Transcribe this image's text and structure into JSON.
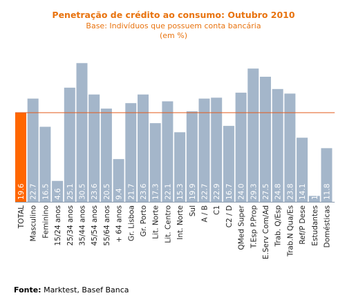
{
  "source_label": "Fonte:",
  "source_text": "Marktest, Basef Banca",
  "colors": {
    "total_bar": "#ff6600",
    "bar": "#a4b6ca",
    "reference_line": "#e35a1a",
    "title": "#e8730f"
  },
  "chart_data": {
    "type": "bar",
    "title": "Penetração de crédito ao consumo: Outubro 2010",
    "subtitle": "Base: Indivíduos que possuem conta bancária",
    "unit": "(em %)",
    "categories": [
      "TOTAL",
      "Masculino",
      "Feminino",
      "15/24 anos",
      "25/34 anos",
      "35/44 anos",
      "45/54 anos",
      "55/64 anos",
      "+ 64 anos",
      "Gr. Lisboa",
      "Gr. Porto",
      "Lit. Norte",
      "Lit. Centro",
      "Int. Norte",
      "Sul",
      "A / B",
      "C1",
      "C2 / D",
      "QMed Super",
      "T.Esp P.Prop",
      "E.Serv Com/Ad",
      "Trab. Q/Esp",
      "Trab.N Qua/Es",
      "Ref/P Dese",
      "Estudantes",
      "Domésticas"
    ],
    "values": [
      19.6,
      22.7,
      16.5,
      4.6,
      25.1,
      30.5,
      23.6,
      20.5,
      9.4,
      21.7,
      23.6,
      17.3,
      22.1,
      15.3,
      19.9,
      22.7,
      22.9,
      16.7,
      24.0,
      29.3,
      27.5,
      24.8,
      23.8,
      14.1,
      1.3,
      11.8
    ],
    "value_labels": [
      "19.6",
      "22.7",
      "16.5",
      "4.6",
      "25.1",
      "30.5",
      "23.6",
      "20.5",
      "9.4",
      "21.7",
      "23.6",
      "17.3",
      "22.1",
      "15.3",
      "19.9",
      "22.7",
      "22.9",
      "16.7",
      "24.0",
      "29.3",
      "27.5",
      "24.8",
      "23.8",
      "14.1",
      "1.3",
      "11.8"
    ],
    "highlight_category": "TOTAL",
    "reference_line": 19.6,
    "ylim": [
      0,
      31
    ],
    "grid": false,
    "legend": "none"
  }
}
